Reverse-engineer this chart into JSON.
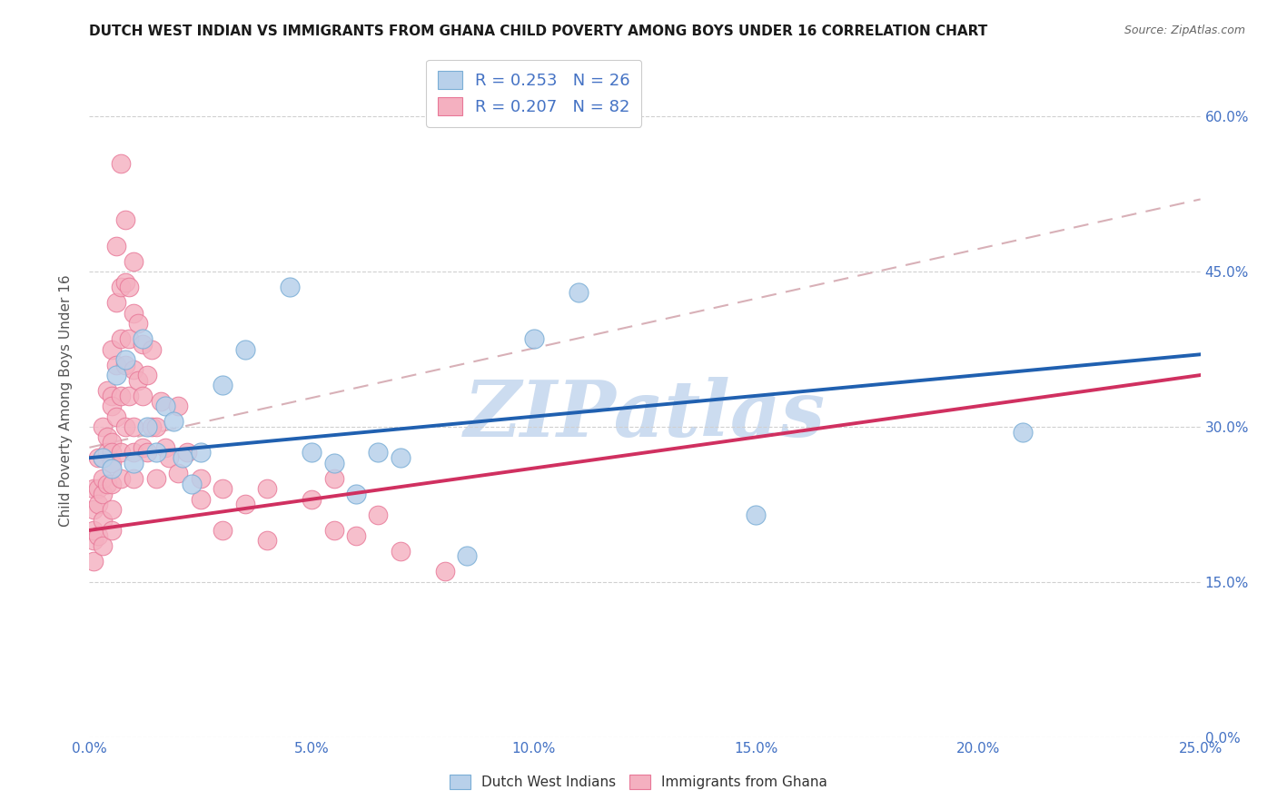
{
  "title": "DUTCH WEST INDIAN VS IMMIGRANTS FROM GHANA CHILD POVERTY AMONG BOYS UNDER 16 CORRELATION CHART",
  "source": "Source: ZipAtlas.com",
  "ylabel": "Child Poverty Among Boys Under 16",
  "xlabel_vals": [
    0.0,
    5.0,
    10.0,
    15.0,
    20.0,
    25.0
  ],
  "ylabel_vals": [
    0.0,
    15.0,
    30.0,
    45.0,
    60.0
  ],
  "xlim": [
    0,
    25
  ],
  "ylim": [
    0,
    65
  ],
  "R_blue": 0.253,
  "N_blue": 26,
  "R_pink": 0.207,
  "N_pink": 82,
  "blue_fill": "#b8d0ea",
  "blue_edge": "#7aaed6",
  "pink_fill": "#f4b0c0",
  "pink_edge": "#e87898",
  "trend_blue_color": "#2060b0",
  "trend_pink_color": "#d03060",
  "trend_dashed_color": "#d4a8b0",
  "watermark_color": "#ccdcf0",
  "title_color": "#1a1a1a",
  "axis_tick_color": "#4472c4",
  "legend_val_color": "#4472c4",
  "grid_color": "#d0d0d0",
  "blue_x": [
    0.3,
    0.5,
    0.6,
    0.8,
    1.0,
    1.2,
    1.3,
    1.5,
    1.7,
    1.9,
    2.1,
    2.3,
    2.5,
    3.0,
    3.5,
    4.5,
    5.0,
    5.5,
    6.0,
    6.5,
    7.0,
    8.5,
    10.0,
    11.0,
    15.0,
    21.0
  ],
  "blue_y": [
    27.0,
    26.0,
    35.0,
    36.5,
    26.5,
    38.5,
    30.0,
    27.5,
    32.0,
    30.5,
    27.0,
    24.5,
    27.5,
    34.0,
    37.5,
    43.5,
    27.5,
    26.5,
    23.5,
    27.5,
    27.0,
    17.5,
    38.5,
    43.0,
    21.5,
    29.5
  ],
  "pink_x": [
    0.1,
    0.1,
    0.1,
    0.1,
    0.1,
    0.2,
    0.2,
    0.2,
    0.2,
    0.3,
    0.3,
    0.3,
    0.3,
    0.3,
    0.3,
    0.4,
    0.4,
    0.4,
    0.4,
    0.5,
    0.5,
    0.5,
    0.5,
    0.5,
    0.5,
    0.5,
    0.5,
    0.5,
    0.6,
    0.6,
    0.6,
    0.6,
    0.7,
    0.7,
    0.7,
    0.7,
    0.7,
    0.7,
    0.8,
    0.8,
    0.8,
    0.8,
    0.9,
    0.9,
    0.9,
    1.0,
    1.0,
    1.0,
    1.0,
    1.0,
    1.0,
    1.1,
    1.1,
    1.2,
    1.2,
    1.2,
    1.3,
    1.3,
    1.4,
    1.4,
    1.5,
    1.5,
    1.6,
    1.7,
    1.8,
    2.0,
    2.0,
    2.2,
    2.5,
    2.5,
    3.0,
    3.0,
    3.5,
    4.0,
    4.0,
    5.0,
    5.5,
    5.5,
    6.0,
    6.5,
    7.0,
    8.0
  ],
  "pink_y": [
    19.0,
    22.0,
    24.0,
    17.0,
    20.0,
    27.0,
    24.0,
    22.5,
    19.5,
    30.0,
    27.0,
    23.5,
    21.0,
    18.5,
    25.0,
    33.5,
    29.0,
    24.5,
    27.5,
    37.5,
    33.0,
    28.5,
    27.5,
    32.0,
    24.5,
    22.0,
    20.0,
    26.5,
    47.5,
    42.0,
    36.0,
    31.0,
    55.5,
    43.5,
    38.5,
    33.0,
    27.5,
    25.0,
    50.0,
    44.0,
    36.0,
    30.0,
    43.5,
    38.5,
    33.0,
    46.0,
    41.0,
    35.5,
    30.0,
    27.5,
    25.0,
    40.0,
    34.5,
    38.0,
    33.0,
    28.0,
    35.0,
    27.5,
    37.5,
    30.0,
    30.0,
    25.0,
    32.5,
    28.0,
    27.0,
    32.0,
    25.5,
    27.5,
    25.0,
    23.0,
    24.0,
    20.0,
    22.5,
    24.0,
    19.0,
    23.0,
    20.0,
    25.0,
    19.5,
    21.5,
    18.0,
    16.0
  ]
}
